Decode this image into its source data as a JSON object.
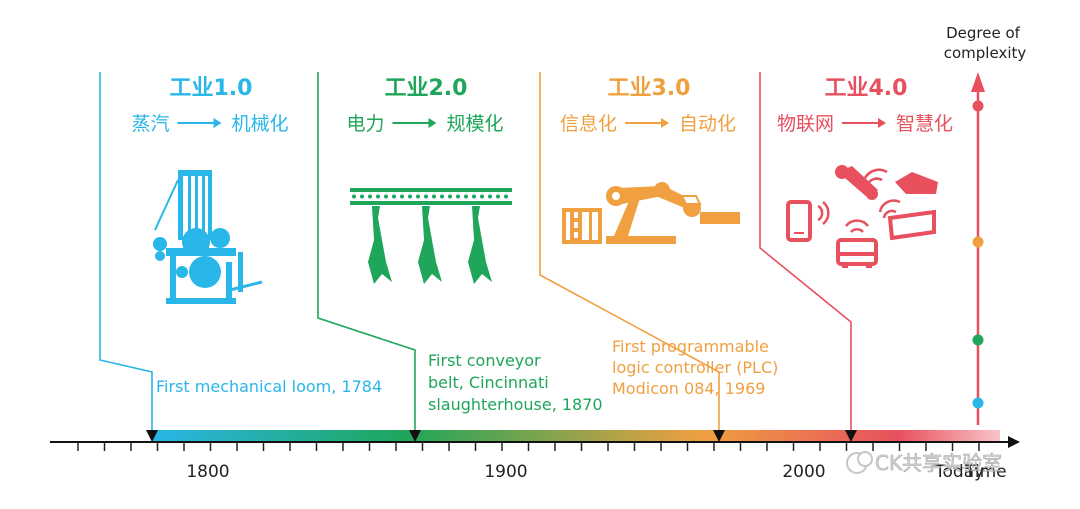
{
  "axis": {
    "y_label_line1": "Degree of",
    "y_label_line2": "complexity",
    "x_end_label": "Time",
    "today_label": "Today",
    "ticks": [
      {
        "value": 1800,
        "label": "1800"
      },
      {
        "value": 1900,
        "label": "1900"
      },
      {
        "value": 2000,
        "label": "2000"
      }
    ],
    "range": [
      1750,
      2080
    ]
  },
  "eras": [
    {
      "title": "工业1.0",
      "from": "蒸汽",
      "to": "机械化",
      "arrow": "⟶",
      "color": "#29b6e8",
      "icon": "mechanical-loom-icon",
      "milestone_lines": [
        "First mechanical loom, 1784"
      ],
      "year": 1784
    },
    {
      "title": "工业2.0",
      "from": "电力",
      "to": "规模化",
      "arrow": "⟶",
      "color": "#1fa65a",
      "icon": "conveyor-belt-icon",
      "milestone_lines": [
        "First conveyor",
        "belt, Cincinnati",
        "slaughterhouse, 1870"
      ],
      "year": 1870
    },
    {
      "title": "工业3.0",
      "from": "信息化",
      "to": "自动化",
      "arrow": "⟶",
      "color": "#f0a040",
      "icon": "robot-arm-plc-icon",
      "milestone_lines": [
        "First programmable",
        "logic controller (PLC)",
        "Modicon 084, 1969"
      ],
      "year": 1969
    },
    {
      "title": "工业4.0",
      "from": "物联网",
      "to": "智慧化",
      "arrow": "⟶",
      "color": "#e8505e",
      "icon": "iot-devices-icon",
      "milestone_lines": [],
      "year": 2014
    }
  ],
  "complexity_levels": [
    {
      "era": "工业1.0",
      "color": "#29b6e8"
    },
    {
      "era": "工业2.0",
      "color": "#1fa65a"
    },
    {
      "era": "工业3.0",
      "color": "#f0a040"
    },
    {
      "era": "工业4.0",
      "color": "#e8505e"
    }
  ],
  "watermark": "CK共享实验室"
}
